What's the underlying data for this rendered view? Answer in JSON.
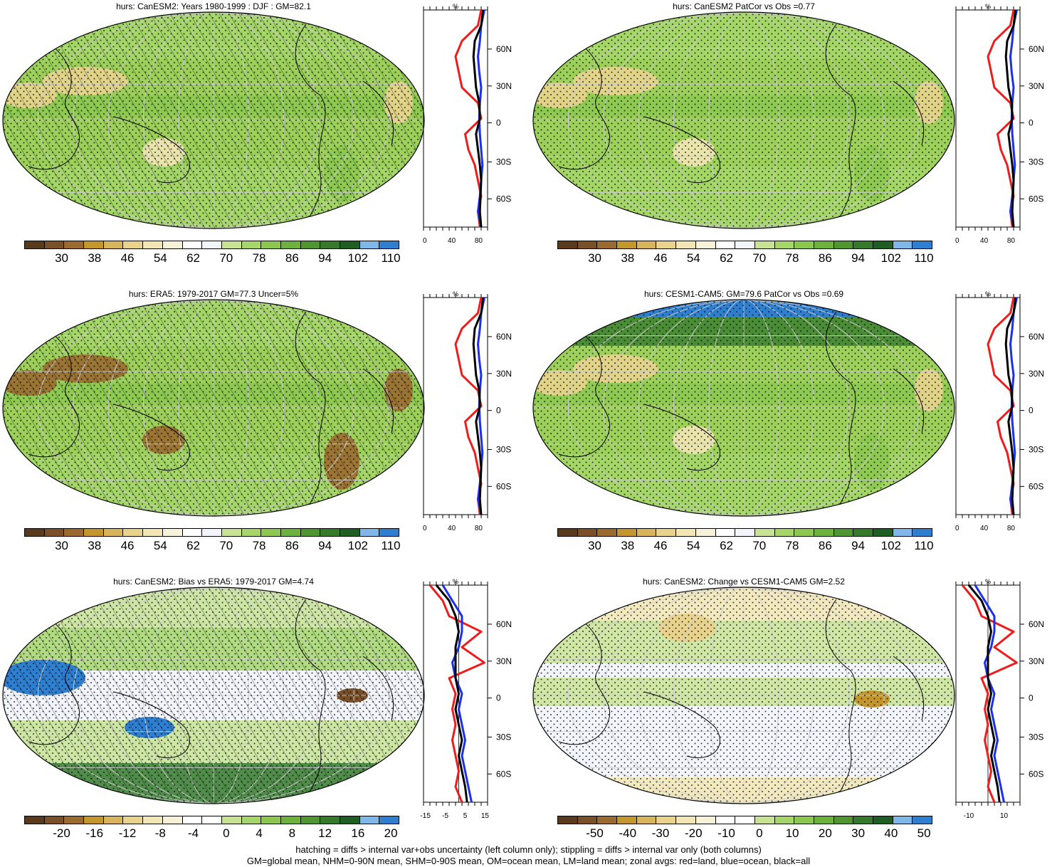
{
  "panels": [
    {
      "id": "p1",
      "title": "hurs: CanESM2: Years 1980-1999 : DJF : GM=82.1",
      "cbar_labels": [
        "30",
        "38",
        "46",
        "54",
        "62",
        "70",
        "78",
        "86",
        "94",
        "102",
        "110"
      ],
      "palette": "abs",
      "hatch": true,
      "zonal": {
        "unit": "%",
        "xticks": [
          "0",
          "40",
          "80"
        ],
        "lats": [
          "60N",
          "30N",
          "0",
          "30S",
          "60S"
        ]
      }
    },
    {
      "id": "p2",
      "title": "hurs: CanESM2 PatCor vs Obs =0.77",
      "cbar_labels": [
        "30",
        "38",
        "46",
        "54",
        "62",
        "70",
        "78",
        "86",
        "94",
        "102",
        "110"
      ],
      "palette": "abs",
      "hatch": false,
      "zonal": {
        "unit": "%",
        "xticks": [
          "0",
          "40",
          "80"
        ],
        "lats": [
          "60N",
          "30N",
          "0",
          "30S",
          "60S"
        ]
      }
    },
    {
      "id": "p3",
      "title": "hurs: ERA5: 1979-2017 GM=77.3 Uncer=5%",
      "cbar_labels": [
        "30",
        "38",
        "46",
        "54",
        "62",
        "70",
        "78",
        "86",
        "94",
        "102",
        "110"
      ],
      "palette": "abs",
      "hatch": true,
      "zonal": {
        "unit": "%",
        "xticks": [
          "0",
          "40",
          "80"
        ],
        "lats": [
          "60N",
          "30N",
          "0",
          "30S",
          "60S"
        ]
      }
    },
    {
      "id": "p4",
      "title": "hurs: CESM1-CAM5: GM=79.6 PatCor vs Obs =0.69",
      "cbar_labels": [
        "30",
        "38",
        "46",
        "54",
        "62",
        "70",
        "78",
        "86",
        "94",
        "102",
        "110"
      ],
      "palette": "abs",
      "hatch": false,
      "zonal": {
        "unit": "%",
        "xticks": [
          "0",
          "40",
          "80"
        ],
        "lats": [
          "60N",
          "30N",
          "0",
          "30S",
          "60S"
        ]
      }
    },
    {
      "id": "p5",
      "title": "hurs: CanESM2: Bias vs ERA5: 1979-2017 GM=4.74",
      "cbar_labels": [
        "-20",
        "-16",
        "-12",
        "-8",
        "-4",
        "0",
        "4",
        "8",
        "12",
        "16",
        "20"
      ],
      "palette": "diff",
      "hatch": true,
      "zonal": {
        "unit": "%",
        "xticks": [
          "-15",
          "-5",
          "5",
          "15"
        ],
        "lats": [
          "60N",
          "30N",
          "0",
          "30S",
          "60S"
        ]
      }
    },
    {
      "id": "p6",
      "title": "hurs: CanESM2: Change vs CESM1-CAM5 GM=2.52",
      "cbar_labels": [
        "-50",
        "-40",
        "-30",
        "-20",
        "-10",
        "0",
        "10",
        "20",
        "30",
        "40",
        "50"
      ],
      "palette": "diff",
      "hatch": false,
      "zonal": {
        "unit": "%",
        "xticks": [
          "-10",
          "10"
        ],
        "lats": [
          "60N",
          "30N",
          "0",
          "30S",
          "60S"
        ]
      }
    }
  ],
  "colors": {
    "palette_abs": [
      "#5a3a1c",
      "#7a5028",
      "#9b6a30",
      "#c4962e",
      "#d8b55a",
      "#e9d38c",
      "#f2e6b4",
      "#f8f2d8",
      "#ffffff",
      "#f2f5fb",
      "#c8e394",
      "#a6d66a",
      "#8cc850",
      "#6eb23e",
      "#4f9632",
      "#357a2a",
      "#1f5e22",
      "#7fb8e8",
      "#2f7fd0"
    ],
    "ocean_base": "#9cd05a",
    "land_line": "#000000",
    "red": "#ee1c1c",
    "blue": "#1c2fee",
    "black": "#000000"
  },
  "footer": {
    "line1": "hatching = diffs > internal var+obs uncertainty (left column only); stippling = diffs > internal var only (both columns)",
    "line2": "GM=global mean, NHM=0-90N mean, SHM=0-90S mean, OM=ocean mean, LM=land mean; zonal avgs: red=land, blue=ocean, black=all"
  }
}
